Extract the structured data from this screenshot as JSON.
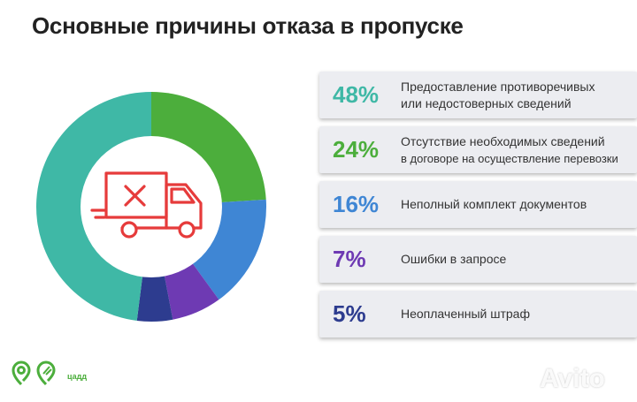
{
  "title": "Основные причины отказа в пропуске",
  "chart_data": {
    "type": "pie",
    "categories": [
      "Предоставление противоречивых или недостоверных сведений",
      "Отсутствие необходимых сведений в договоре на осуществление перевозки",
      "Неполный комплект документов",
      "Ошибки в запросе",
      "Неоплаченный штраф"
    ],
    "values": [
      48,
      24,
      16,
      7,
      5
    ],
    "colors": [
      "#3fb8a6",
      "#4cae3c",
      "#3f86d4",
      "#6e3ab3",
      "#2d3c8f"
    ],
    "legend": "right"
  },
  "items": [
    {
      "pct": "48%",
      "line1": "Предоставление противоречивых",
      "line2": "или недостоверных сведений",
      "color": "#3fb8a6"
    },
    {
      "pct": "24%",
      "line1": "Отсутствие необходимых сведений",
      "line2": "в договоре на осуществление перевозки",
      "color": "#4cae3c"
    },
    {
      "pct": "16%",
      "line1": "Неполный комплект документов",
      "line2": "",
      "color": "#3f86d4"
    },
    {
      "pct": "7%",
      "line1": "Ошибки в запросе",
      "line2": "",
      "color": "#6e3ab3"
    },
    {
      "pct": "5%",
      "line1": "Неоплаченный штраф",
      "line2": "",
      "color": "#2d3c8f"
    }
  ],
  "center_icon": "truck-cross-icon",
  "logo": {
    "text": "цадд",
    "icon": "cadd-logo-icon"
  },
  "watermark": {
    "text": "Avito",
    "icon": "avito-logo-icon"
  }
}
